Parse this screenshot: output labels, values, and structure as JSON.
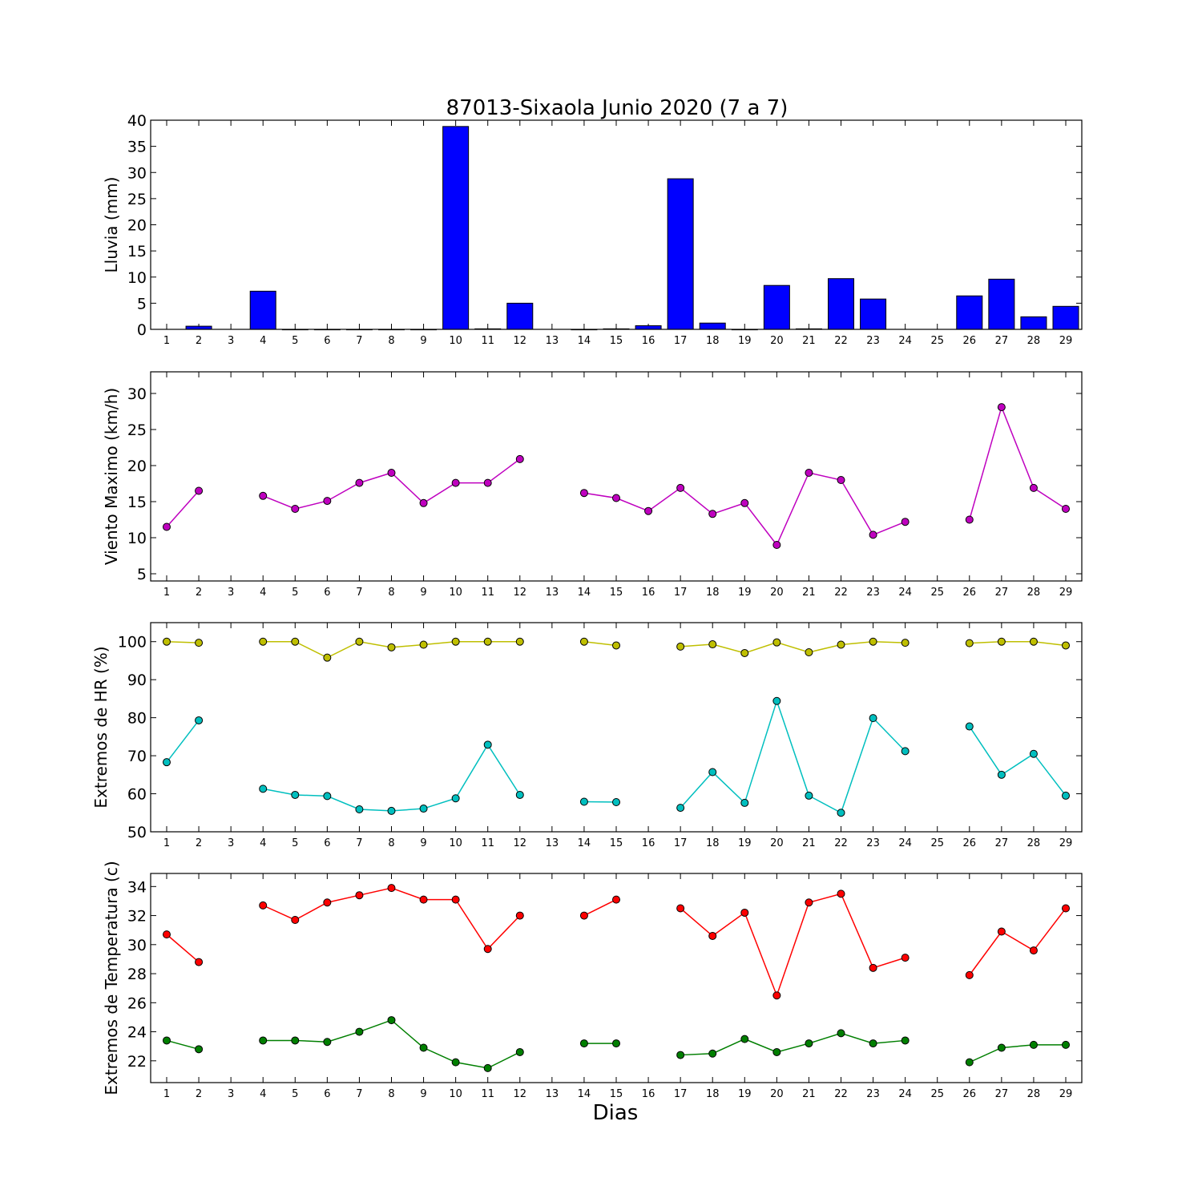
{
  "figure": {
    "title": "87013-Sixaola Junio 2020  (7 a 7)",
    "xlabel": "Dias"
  },
  "chart_data": [
    {
      "type": "bar",
      "ylabel": "Lluvia (mm)",
      "ylim": [
        0,
        40
      ],
      "yticks": [
        0,
        5,
        10,
        15,
        20,
        25,
        30,
        35,
        40
      ],
      "categories": [
        "1",
        "2",
        "3",
        "4",
        "5",
        "6",
        "7",
        "8",
        "9",
        "10",
        "11",
        "12",
        "13",
        "14",
        "15",
        "16",
        "17",
        "18",
        "19",
        "20",
        "21",
        "22",
        "23",
        "24",
        "25",
        "26",
        "27",
        "28",
        "29"
      ],
      "series": [
        {
          "color": "#0000ff",
          "values": [
            null,
            0.6,
            null,
            7.3,
            0,
            0,
            0,
            0,
            0,
            38.8,
            0.1,
            5.0,
            null,
            0,
            0.1,
            0.7,
            28.8,
            1.2,
            0,
            8.4,
            0.1,
            9.7,
            5.8,
            null,
            null,
            6.4,
            9.6,
            2.4,
            4.4
          ]
        }
      ]
    },
    {
      "type": "line",
      "ylabel": "Viento Maximo (km/h)",
      "ylim": [
        4,
        33
      ],
      "yticks": [
        5,
        10,
        15,
        20,
        25,
        30
      ],
      "categories": [
        "1",
        "2",
        "3",
        "4",
        "5",
        "6",
        "7",
        "8",
        "9",
        "10",
        "11",
        "12",
        "13",
        "14",
        "15",
        "16",
        "17",
        "18",
        "19",
        "20",
        "21",
        "22",
        "23",
        "24",
        "25",
        "26",
        "27",
        "28",
        "29"
      ],
      "series": [
        {
          "color": "#bf00bf",
          "values": [
            11.5,
            16.5,
            null,
            15.8,
            14.0,
            15.1,
            17.6,
            19.0,
            14.8,
            17.6,
            17.6,
            20.9,
            null,
            16.2,
            15.5,
            13.7,
            16.9,
            13.3,
            14.8,
            9.0,
            19.0,
            18.0,
            10.4,
            12.2,
            null,
            12.5,
            28.1,
            16.9,
            14.0
          ]
        }
      ]
    },
    {
      "type": "line",
      "ylabel": "Extremos de HR (%)",
      "ylim": [
        50,
        105
      ],
      "yticks": [
        50,
        60,
        70,
        80,
        90,
        100
      ],
      "categories": [
        "1",
        "2",
        "3",
        "4",
        "5",
        "6",
        "7",
        "8",
        "9",
        "10",
        "11",
        "12",
        "13",
        "14",
        "15",
        "16",
        "17",
        "18",
        "19",
        "20",
        "21",
        "22",
        "23",
        "24",
        "25",
        "26",
        "27",
        "28",
        "29"
      ],
      "series": [
        {
          "color": "#bfbf00",
          "values": [
            100,
            99.7,
            null,
            100,
            100,
            95.8,
            100,
            98.5,
            99.2,
            100,
            100,
            100,
            null,
            100,
            99,
            null,
            98.7,
            99.3,
            97,
            99.8,
            97.2,
            99.2,
            100,
            99.7,
            null,
            99.6,
            100,
            100,
            99
          ]
        },
        {
          "color": "#00bfbf",
          "values": [
            68.3,
            79.3,
            null,
            61.3,
            59.7,
            59.4,
            55.9,
            55.5,
            56.1,
            58.8,
            72.9,
            59.7,
            null,
            57.9,
            57.8,
            null,
            56.3,
            65.7,
            57.6,
            84.4,
            59.5,
            55.0,
            79.9,
            71.2,
            null,
            77.7,
            65.0,
            70.5,
            59.5
          ]
        }
      ]
    },
    {
      "type": "line",
      "ylabel": "Extremos de Temperatura (c)",
      "ylim": [
        20.5,
        34.9
      ],
      "yticks": [
        22,
        24,
        26,
        28,
        30,
        32,
        34
      ],
      "categories": [
        "1",
        "2",
        "3",
        "4",
        "5",
        "6",
        "7",
        "8",
        "9",
        "10",
        "11",
        "12",
        "13",
        "14",
        "15",
        "16",
        "17",
        "18",
        "19",
        "20",
        "21",
        "22",
        "23",
        "24",
        "25",
        "26",
        "27",
        "28",
        "29"
      ],
      "series": [
        {
          "color": "#ff0000",
          "values": [
            30.7,
            28.8,
            null,
            32.7,
            31.7,
            32.9,
            33.4,
            33.9,
            33.1,
            33.1,
            29.7,
            32.0,
            null,
            32.0,
            33.1,
            null,
            32.5,
            30.6,
            32.2,
            26.5,
            32.9,
            33.5,
            28.4,
            29.1,
            null,
            27.9,
            30.9,
            29.6,
            32.5
          ]
        },
        {
          "color": "#007f00",
          "values": [
            23.4,
            22.8,
            null,
            23.4,
            23.4,
            23.3,
            24.0,
            24.8,
            22.9,
            21.9,
            21.5,
            22.6,
            null,
            23.2,
            23.2,
            null,
            22.4,
            22.5,
            23.5,
            22.6,
            23.2,
            23.9,
            23.2,
            23.4,
            null,
            21.9,
            22.9,
            23.1,
            23.1
          ]
        }
      ]
    }
  ]
}
